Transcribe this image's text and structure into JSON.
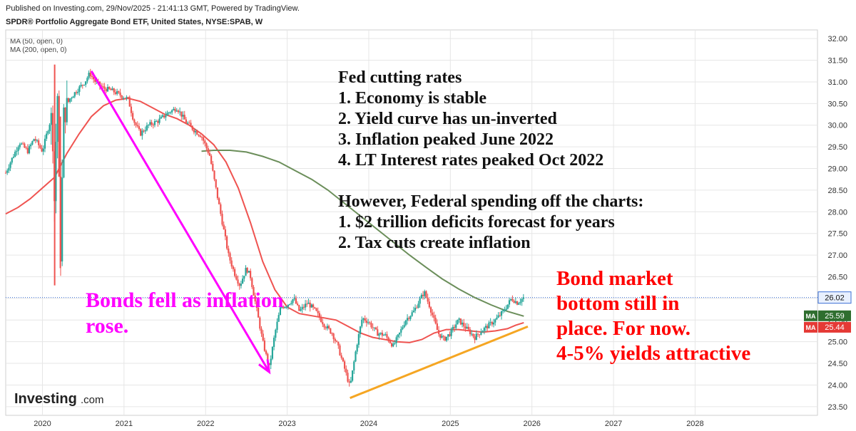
{
  "header": {
    "published": "Published on Investing.com, 29/Nov/2025 - 21:41:13 GMT, Powered by TradingView.",
    "title": "SPDR® Portfolio Aggregate Bond ETF, United States, NYSE:SPAB, W"
  },
  "legend": {
    "ma50": "MA (50, open, 0)",
    "ma200": "MA (200, open, 0)"
  },
  "logo": {
    "main": "Investing",
    "suffix": ".com"
  },
  "colors": {
    "candle_up": "#26a69a",
    "candle_down": "#ef5350",
    "ma50": "#ef5350",
    "ma200": "#6b8e5a",
    "annotation_magenta": "#ff00ff",
    "annotation_red": "#ff0000",
    "trendline": "#f5a623",
    "price_line": "#3b6fd6"
  },
  "annotations": {
    "fed": [
      "Fed cutting rates",
      "1. Economy is stable",
      "2. Yield curve has un-inverted",
      "3. Inflation peaked June 2022",
      "4. LT Interest rates peaked Oct 2022",
      "",
      "However, Federal spending off the charts:",
      "1. $2 trillion deficits forecast for years",
      "2. Tax cuts create inflation"
    ],
    "bonds_fell": [
      "Bonds fell as inflation",
      "rose."
    ],
    "bottom": [
      "Bond market",
      "bottom still in",
      "place. For now.",
      "4-5% yields attractive"
    ]
  },
  "price_labels": {
    "last": "26.02",
    "ma_tag": "MA",
    "ma200_value": "25.59",
    "ma50_value": "25.44"
  },
  "chart_data": {
    "type": "candlestick",
    "title": "SPDR® Portfolio Aggregate Bond ETF, United States, NYSE:SPAB, W",
    "x_ticks": [
      "2020",
      "2021",
      "2022",
      "2023",
      "2024",
      "2025",
      "2026",
      "2027",
      "2028"
    ],
    "y_ticks": [
      "23.50",
      "24.00",
      "24.50",
      "25.00",
      "25.50",
      "26.00",
      "26.50",
      "27.00",
      "27.50",
      "28.00",
      "28.50",
      "29.00",
      "29.50",
      "30.00",
      "30.50",
      "31.00",
      "31.50",
      "32.00"
    ],
    "ylim": [
      23.3,
      32.2
    ],
    "xlim": [
      2019.55,
      2029.5
    ],
    "grid": true,
    "last_price": 26.02,
    "price_path": [
      [
        2019.55,
        28.9
      ],
      [
        2019.62,
        29.2
      ],
      [
        2019.72,
        29.6
      ],
      [
        2019.82,
        29.4
      ],
      [
        2019.9,
        29.7
      ],
      [
        2020.0,
        29.4
      ],
      [
        2020.08,
        30.0
      ],
      [
        2020.12,
        30.2
      ],
      [
        2020.15,
        28.0
      ],
      [
        2020.18,
        31.2
      ],
      [
        2020.22,
        26.8
      ],
      [
        2020.26,
        30.2
      ],
      [
        2020.33,
        30.6
      ],
      [
        2020.42,
        30.8
      ],
      [
        2020.52,
        31.0
      ],
      [
        2020.58,
        31.2
      ],
      [
        2020.65,
        31.0
      ],
      [
        2020.75,
        30.85
      ],
      [
        2020.85,
        30.8
      ],
      [
        2020.95,
        30.7
      ],
      [
        2021.05,
        30.6
      ],
      [
        2021.12,
        30.1
      ],
      [
        2021.2,
        29.8
      ],
      [
        2021.3,
        30.0
      ],
      [
        2021.42,
        30.1
      ],
      [
        2021.55,
        30.3
      ],
      [
        2021.65,
        30.4
      ],
      [
        2021.75,
        30.1
      ],
      [
        2021.85,
        29.9
      ],
      [
        2021.95,
        29.75
      ],
      [
        2022.05,
        29.3
      ],
      [
        2022.12,
        28.6
      ],
      [
        2022.2,
        27.8
      ],
      [
        2022.28,
        27.0
      ],
      [
        2022.35,
        26.6
      ],
      [
        2022.42,
        26.3
      ],
      [
        2022.5,
        26.7
      ],
      [
        2022.55,
        26.5
      ],
      [
        2022.62,
        25.8
      ],
      [
        2022.7,
        25.0
      ],
      [
        2022.78,
        24.4
      ],
      [
        2022.85,
        25.2
      ],
      [
        2022.92,
        25.8
      ],
      [
        2023.0,
        25.85
      ],
      [
        2023.08,
        26.0
      ],
      [
        2023.15,
        25.7
      ],
      [
        2023.25,
        25.9
      ],
      [
        2023.35,
        25.7
      ],
      [
        2023.45,
        25.4
      ],
      [
        2023.55,
        25.2
      ],
      [
        2023.62,
        24.9
      ],
      [
        2023.7,
        24.4
      ],
      [
        2023.77,
        23.95
      ],
      [
        2023.85,
        24.9
      ],
      [
        2023.92,
        25.55
      ],
      [
        2024.0,
        25.45
      ],
      [
        2024.1,
        25.2
      ],
      [
        2024.2,
        25.15
      ],
      [
        2024.3,
        24.9
      ],
      [
        2024.38,
        25.2
      ],
      [
        2024.45,
        25.5
      ],
      [
        2024.55,
        25.7
      ],
      [
        2024.62,
        25.95
      ],
      [
        2024.68,
        26.15
      ],
      [
        2024.75,
        25.8
      ],
      [
        2024.85,
        25.2
      ],
      [
        2024.92,
        25.05
      ],
      [
        2025.0,
        25.2
      ],
      [
        2025.1,
        25.5
      ],
      [
        2025.2,
        25.3
      ],
      [
        2025.3,
        25.1
      ],
      [
        2025.38,
        25.25
      ],
      [
        2025.45,
        25.35
      ],
      [
        2025.55,
        25.5
      ],
      [
        2025.65,
        25.7
      ],
      [
        2025.75,
        26.0
      ],
      [
        2025.82,
        25.9
      ],
      [
        2025.9,
        26.02
      ]
    ],
    "ma50_path": [
      [
        2019.55,
        27.95
      ],
      [
        2019.7,
        28.1
      ],
      [
        2019.85,
        28.3
      ],
      [
        2020.0,
        28.55
      ],
      [
        2020.15,
        28.8
      ],
      [
        2020.3,
        29.35
      ],
      [
        2020.45,
        29.8
      ],
      [
        2020.6,
        30.2
      ],
      [
        2020.75,
        30.45
      ],
      [
        2020.9,
        30.58
      ],
      [
        2021.05,
        30.62
      ],
      [
        2021.2,
        30.55
      ],
      [
        2021.35,
        30.4
      ],
      [
        2021.5,
        30.25
      ],
      [
        2021.65,
        30.15
      ],
      [
        2021.8,
        30.0
      ],
      [
        2021.95,
        29.8
      ],
      [
        2022.1,
        29.55
      ],
      [
        2022.25,
        29.15
      ],
      [
        2022.4,
        28.55
      ],
      [
        2022.55,
        27.75
      ],
      [
        2022.7,
        26.85
      ],
      [
        2022.85,
        26.2
      ],
      [
        2023.0,
        25.8
      ],
      [
        2023.15,
        25.65
      ],
      [
        2023.3,
        25.6
      ],
      [
        2023.45,
        25.55
      ],
      [
        2023.6,
        25.5
      ],
      [
        2023.75,
        25.35
      ],
      [
        2023.9,
        25.2
      ],
      [
        2024.05,
        25.1
      ],
      [
        2024.2,
        25.05
      ],
      [
        2024.35,
        25.0
      ],
      [
        2024.5,
        24.98
      ],
      [
        2024.65,
        25.05
      ],
      [
        2024.8,
        25.2
      ],
      [
        2024.95,
        25.28
      ],
      [
        2025.1,
        25.28
      ],
      [
        2025.25,
        25.25
      ],
      [
        2025.4,
        25.22
      ],
      [
        2025.55,
        25.25
      ],
      [
        2025.7,
        25.3
      ],
      [
        2025.8,
        25.38
      ],
      [
        2025.9,
        25.44
      ]
    ],
    "ma200_path": [
      [
        2021.95,
        29.4
      ],
      [
        2022.1,
        29.42
      ],
      [
        2022.3,
        29.42
      ],
      [
        2022.5,
        29.38
      ],
      [
        2022.7,
        29.28
      ],
      [
        2022.9,
        29.15
      ],
      [
        2023.1,
        28.95
      ],
      [
        2023.3,
        28.75
      ],
      [
        2023.5,
        28.5
      ],
      [
        2023.7,
        28.2
      ],
      [
        2023.9,
        27.9
      ],
      [
        2024.1,
        27.6
      ],
      [
        2024.3,
        27.3
      ],
      [
        2024.5,
        27.0
      ],
      [
        2024.7,
        26.72
      ],
      [
        2024.9,
        26.45
      ],
      [
        2025.1,
        26.22
      ],
      [
        2025.3,
        26.02
      ],
      [
        2025.5,
        25.85
      ],
      [
        2025.7,
        25.7
      ],
      [
        2025.9,
        25.59
      ]
    ],
    "trendline": [
      [
        2023.77,
        23.7
      ],
      [
        2025.95,
        25.35
      ]
    ],
    "arrow": [
      [
        2020.6,
        31.25
      ],
      [
        2022.78,
        24.3
      ]
    ]
  }
}
